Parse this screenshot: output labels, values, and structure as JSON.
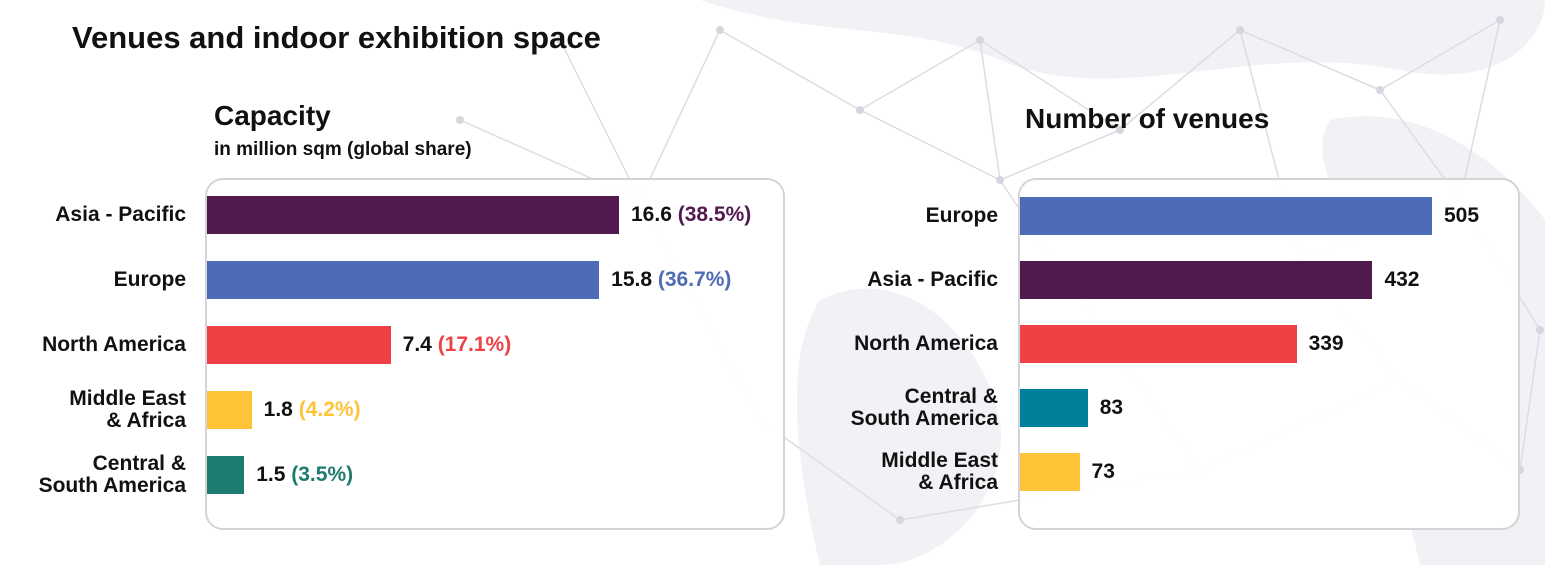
{
  "title": "Venues and indoor exhibition space",
  "chart_data": [
    {
      "type": "bar",
      "orientation": "horizontal",
      "title": "Capacity",
      "subtitle": "in million sqm (global share)",
      "categories": [
        "Asia - Pacific",
        "Europe",
        "North America",
        "Middle East\n& Africa",
        "Central &\nSouth America"
      ],
      "values": [
        16.6,
        15.8,
        7.4,
        1.8,
        1.5
      ],
      "shares": [
        "(38.5%)",
        "(36.7%)",
        "(17.1%)",
        "(4.2%)",
        "(3.5%)"
      ],
      "colors": [
        "#52194f",
        "#4e6bb8",
        "#ef4046",
        "#fec336",
        "#1e7b70"
      ],
      "share_colors": [
        "#52194f",
        "#4e6bb8",
        "#ef4046",
        "#fec336",
        "#1e7b70"
      ],
      "xlim": [
        0,
        16.6
      ],
      "grid": false,
      "legend": false
    },
    {
      "type": "bar",
      "orientation": "horizontal",
      "title": "Number of venues",
      "categories": [
        "Europe",
        "Asia - Pacific",
        "North America",
        "Central &\nSouth America",
        "Middle East\n& Africa"
      ],
      "values": [
        505,
        432,
        339,
        83,
        73
      ],
      "colors": [
        "#4e6bb8",
        "#52194f",
        "#ef4046",
        "#00809b",
        "#fec336"
      ],
      "xlim": [
        0,
        505
      ],
      "grid": false,
      "legend": false
    }
  ]
}
